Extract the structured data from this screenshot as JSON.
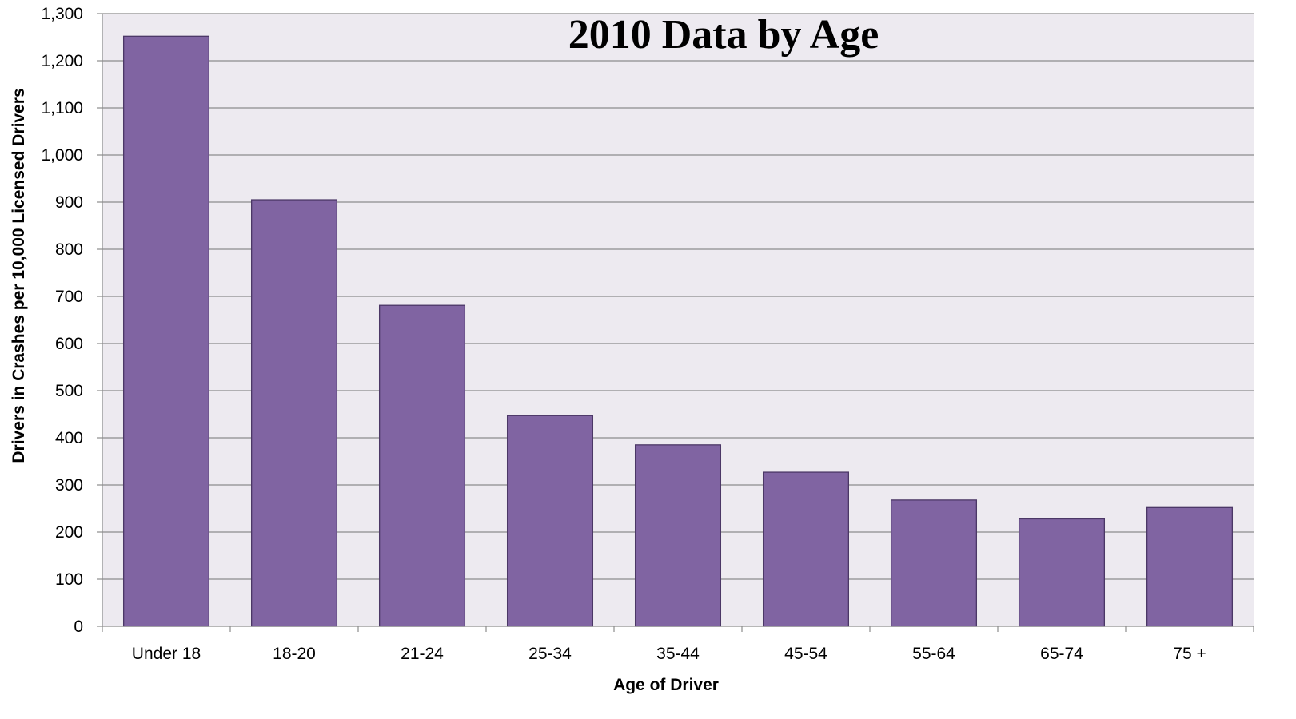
{
  "chart_data": {
    "type": "bar",
    "title": "2010 Data by Age",
    "xlabel": "Age of Driver",
    "ylabel": "Drivers in Crashes per 10,000 Licensed Drivers",
    "categories": [
      "Under 18",
      "18-20",
      "21-24",
      "25-34",
      "35-44",
      "45-54",
      "55-64",
      "65-74",
      "75 +"
    ],
    "values": [
      1252,
      905,
      681,
      447,
      385,
      327,
      268,
      228,
      252
    ],
    "ylim": [
      0,
      1300
    ],
    "yticks": [
      0,
      100,
      200,
      300,
      400,
      500,
      600,
      700,
      800,
      900,
      1000,
      1100,
      1200,
      1300
    ],
    "ytick_labels": [
      "0",
      "100",
      "200",
      "300",
      "400",
      "500",
      "600",
      "700",
      "800",
      "900",
      "1,000",
      "1,100",
      "1,200",
      "1,300"
    ],
    "grid": true,
    "legend": "none",
    "colors": {
      "bar_fill": "#8064A2",
      "bar_stroke": "#4B3766",
      "plot_background": "#EDEAF0",
      "gridline": "#8C8C8C"
    }
  }
}
